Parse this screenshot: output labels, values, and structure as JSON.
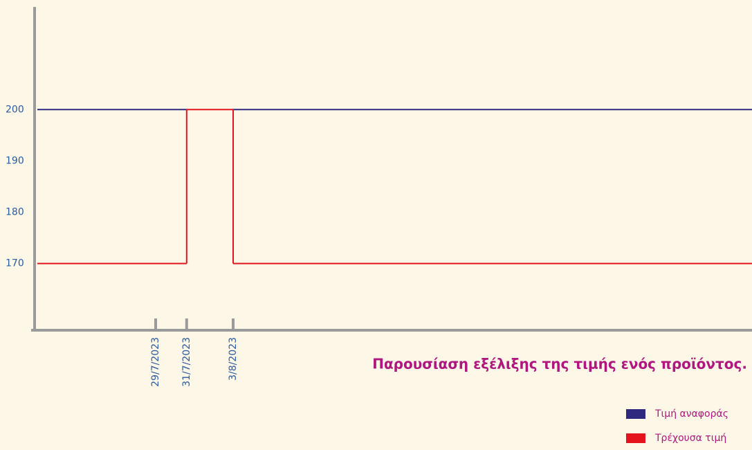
{
  "chart_data": {
    "type": "step",
    "title": "Παρουσίαση εξέλιξης της τιμής ενός προϊόντος.",
    "x": [
      "29/7/2023",
      "31/7/2023",
      "3/8/2023"
    ],
    "series": [
      {
        "name": "Τιμή αναφοράς",
        "color": "#2e2a80",
        "values": [
          200,
          null,
          200
        ]
      },
      {
        "name": "Τρέχουσα τιμή",
        "color": "#e3141b",
        "values": [
          170,
          200,
          170
        ]
      }
    ],
    "ylim": [
      157,
      220
    ],
    "yticks": [
      170,
      180,
      190,
      200
    ],
    "legend": "bottom-right"
  }
}
